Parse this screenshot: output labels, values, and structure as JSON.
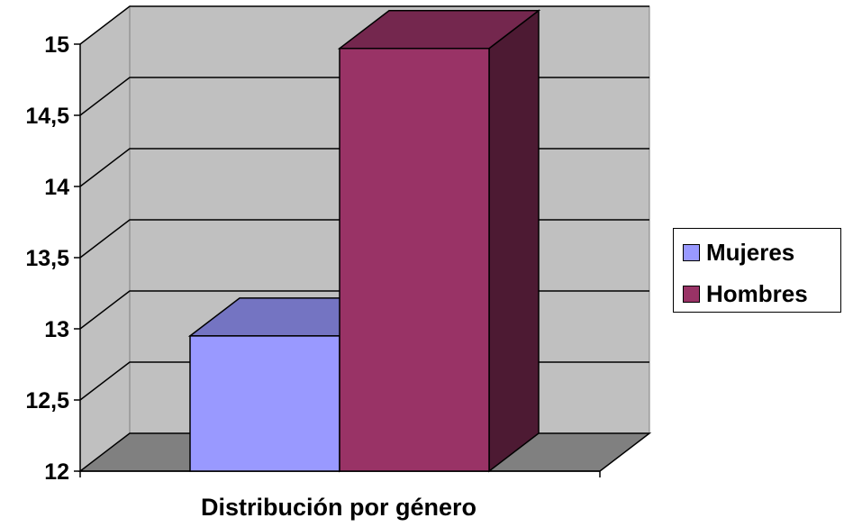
{
  "chart_data": {
    "type": "bar",
    "categories": [
      ""
    ],
    "series": [
      {
        "name": "Mujeres",
        "values": [
          12.95
        ],
        "color": "#9999ff"
      },
      {
        "name": "Hombres",
        "values": [
          14.97
        ],
        "color": "#993366"
      }
    ],
    "xlabel": "Distribución por género",
    "ylabel": "",
    "ylim": [
      12,
      15
    ],
    "yticks": [
      "12",
      "12,5",
      "13",
      "13,5",
      "14",
      "14,5",
      "15"
    ],
    "grid": true,
    "legend": "right",
    "style": "3d",
    "wall_color": "#c0c0c0",
    "floor_color": "#808080"
  }
}
